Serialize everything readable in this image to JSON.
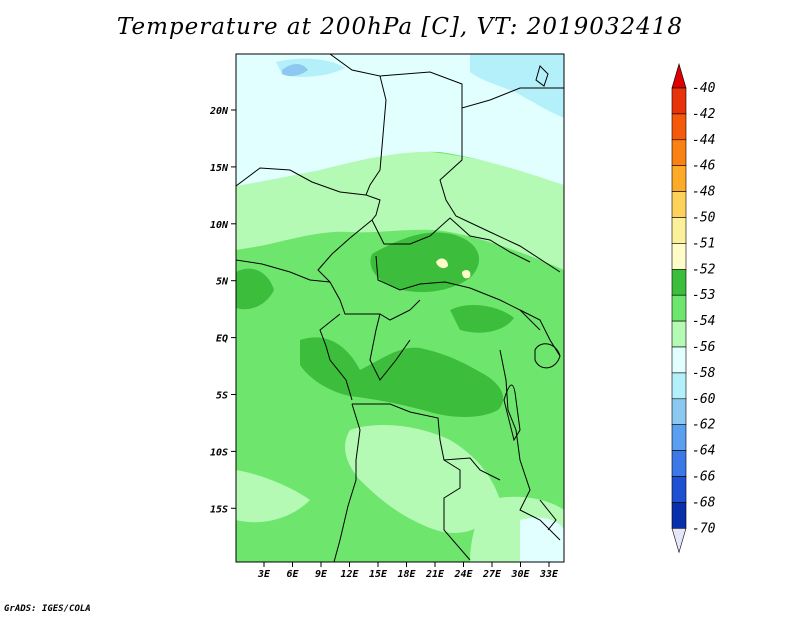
{
  "title": "Temperature at 200hPa [C], VT: 2019032418",
  "credit": "GrADS: IGES/COLA",
  "lat_labels": [
    "20N",
    "15N",
    "10N",
    "5N",
    "EQ",
    "5S",
    "10S",
    "15S"
  ],
  "lon_labels": [
    "3E",
    "6E",
    "9E",
    "12E",
    "15E",
    "18E",
    "21E",
    "24E",
    "27E",
    "30E",
    "33E"
  ],
  "colorbar": {
    "labels": [
      "-40",
      "-42",
      "-44",
      "-46",
      "-48",
      "-50",
      "-51",
      "-52",
      "-53",
      "-54",
      "-56",
      "-58",
      "-60",
      "-62",
      "-64",
      "-66",
      "-68",
      "-70"
    ],
    "colors": [
      "#e8320a",
      "#f55a0a",
      "#fa8214",
      "#fdaa28",
      "#fdd25a",
      "#fdf09a",
      "#fffcc8",
      "#3cbe3c",
      "#6ee66e",
      "#b4fab4",
      "#e1ffff",
      "#b4f0fa",
      "#8cc8f0",
      "#5a9ff0",
      "#3c78e6",
      "#2050d2",
      "#0a2faa",
      "#000a78"
    ],
    "top_color": "#dc0000",
    "bottom_color": "#e6e6fa"
  }
}
